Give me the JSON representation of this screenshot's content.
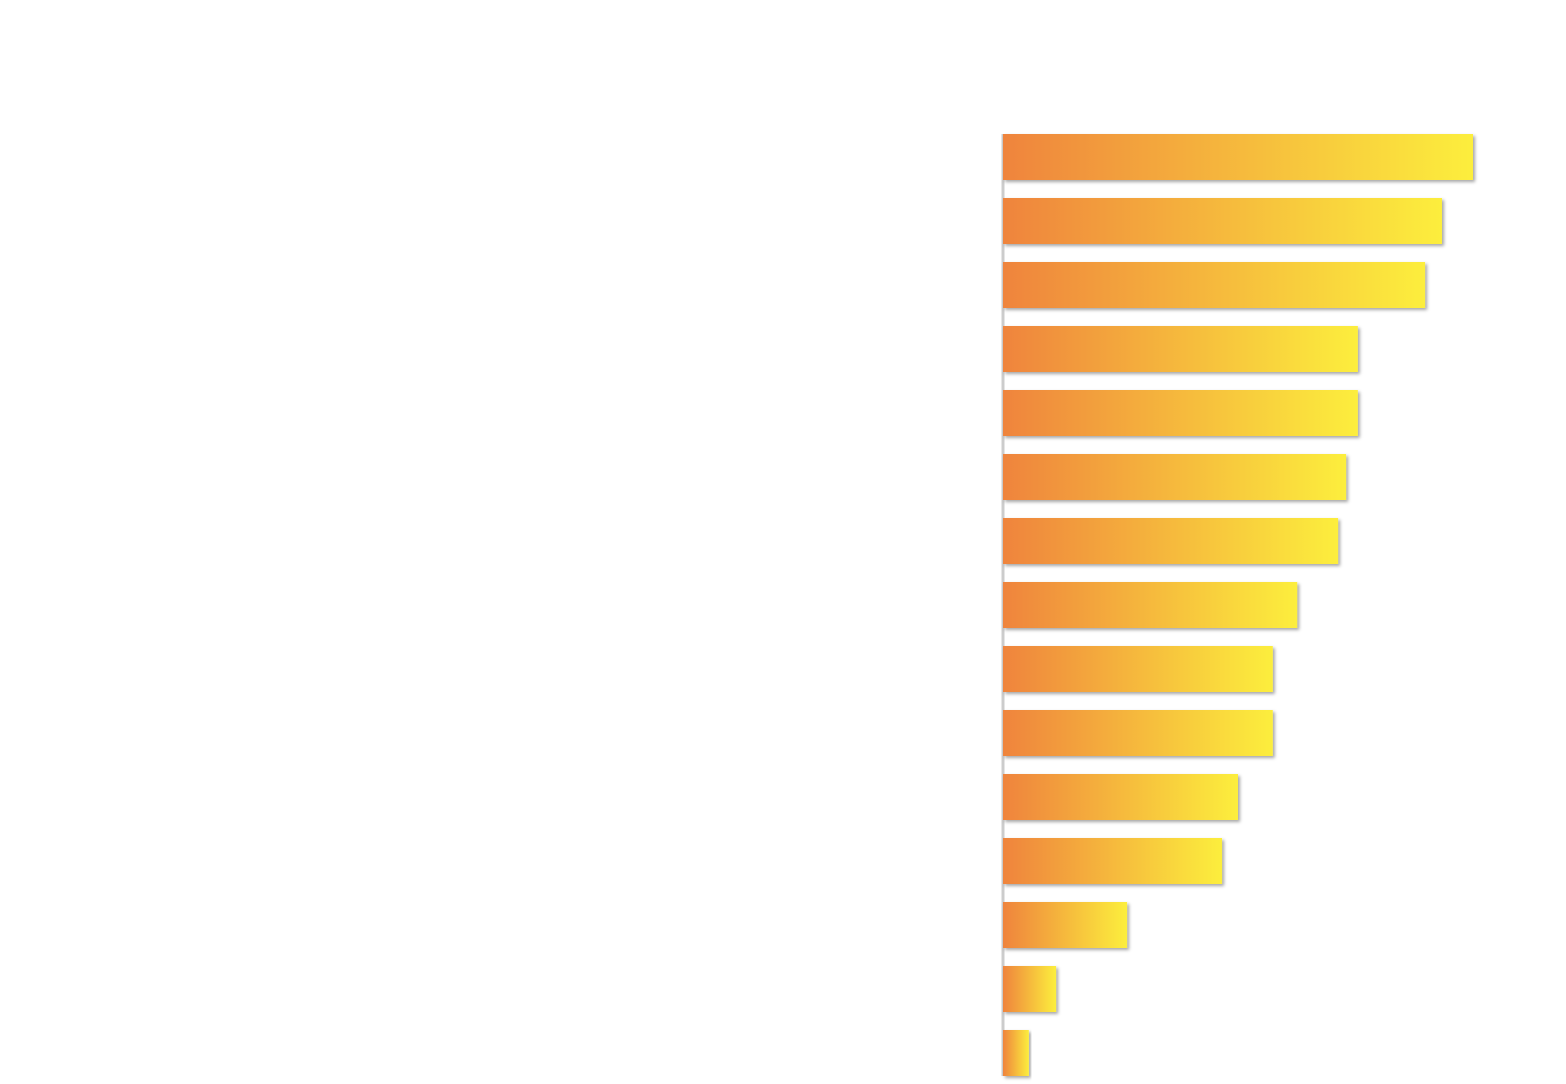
{
  "chart_data": {
    "type": "bar",
    "orientation": "horizontal",
    "categories": [
      null,
      null,
      null,
      null,
      null,
      null,
      null,
      null,
      null,
      null,
      null,
      null,
      null,
      null,
      null
    ],
    "values": [
      100,
      93.4,
      89.8,
      75.5,
      75.5,
      73,
      71.3,
      62.6,
      57.4,
      57.4,
      50,
      46.6,
      26.4,
      11.3,
      5.5
    ],
    "gradient": [
      "#ef843d",
      "#fcee3d"
    ],
    "xlim": [
      0,
      100
    ]
  }
}
